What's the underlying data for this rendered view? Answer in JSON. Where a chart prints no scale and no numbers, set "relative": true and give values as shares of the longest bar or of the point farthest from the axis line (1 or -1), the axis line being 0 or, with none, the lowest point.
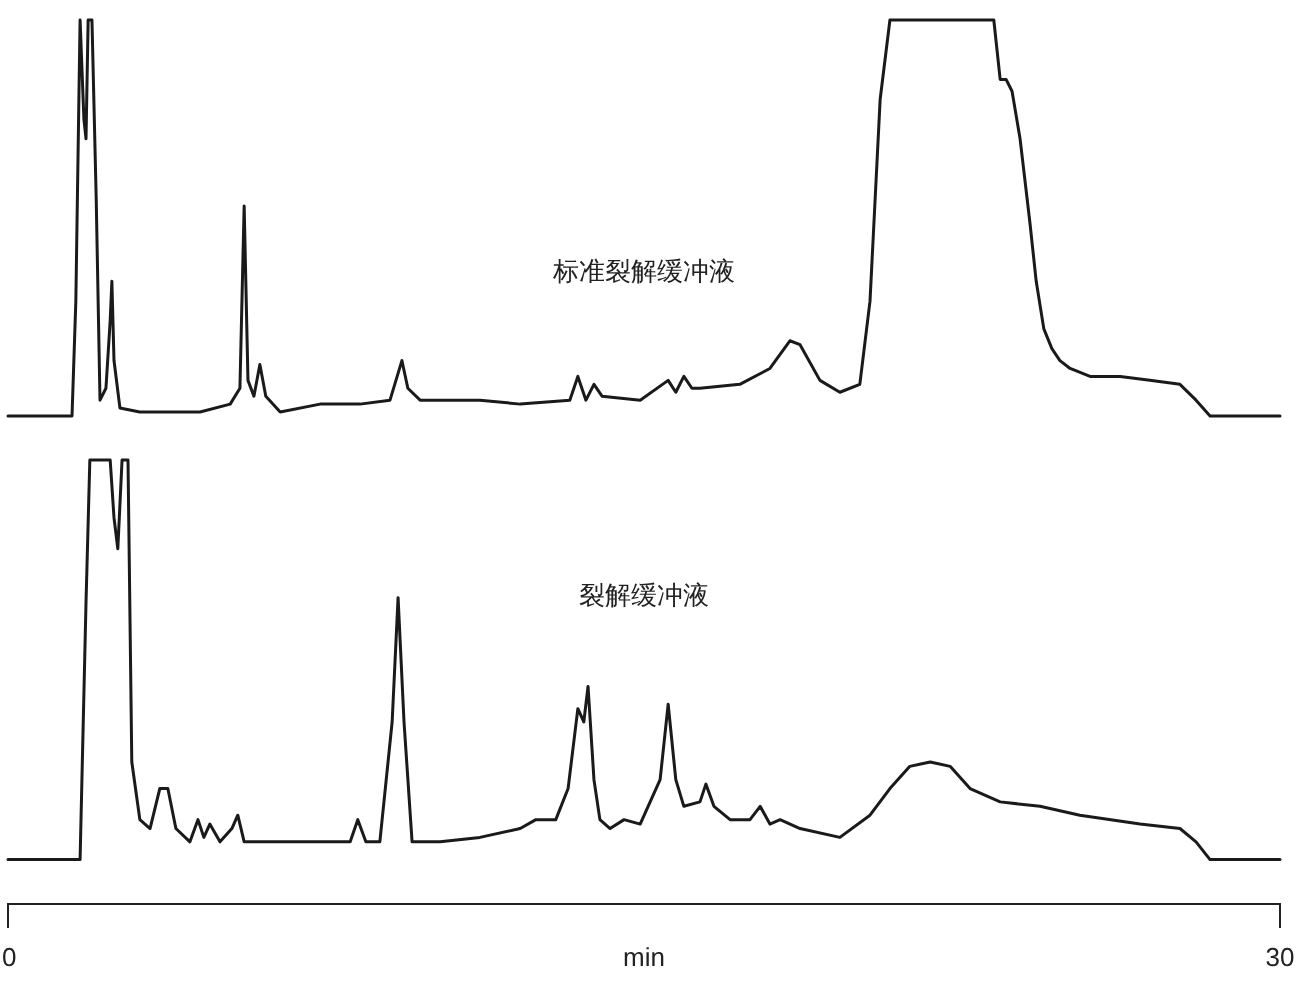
{
  "chart_data": [
    {
      "type": "line",
      "relative": true,
      "xlim": [
        0,
        30
      ],
      "tick_labels": false,
      "grid": false,
      "marker": "none",
      "line_style": "solid",
      "x": [
        0,
        1.51,
        1.6,
        1.7,
        1.79,
        1.84,
        1.89,
        1.98,
        2.08,
        2.17,
        2.31,
        2.41,
        2.45,
        2.5,
        2.64,
        3.11,
        4.53,
        5.24,
        5.47,
        5.57,
        5.66,
        5.8,
        5.94,
        6.08,
        6.42,
        7.36,
        8.3,
        9.01,
        9.15,
        9.29,
        9.43,
        9.72,
        11.13,
        12.08,
        13.25,
        13.44,
        13.63,
        13.82,
        14.01,
        14.91,
        15.57,
        15.75,
        15.94,
        16.13,
        16.32,
        17.26,
        17.97,
        18.44,
        18.68,
        19.15,
        19.62,
        20.09,
        20.33,
        20.57,
        20.8,
        23.25,
        23.4,
        23.54,
        23.68,
        23.87,
        24.1,
        24.25,
        24.43,
        24.62,
        24.81,
        25.05,
        25.52,
        26.23,
        26.93,
        27.64,
        28.02,
        28.35,
        28.58,
        30
      ],
      "series": [
        {
          "name": "标准裂解缓冲液",
          "color": "#1a1a1a",
          "values": [
            0,
            0,
            0.29,
            1,
            0.75,
            0.7,
            1,
            1,
            0.55,
            0.04,
            0.07,
            0.24,
            0.34,
            0.14,
            0.02,
            0.01,
            0.01,
            0.03,
            0.07,
            0.53,
            0.09,
            0.05,
            0.13,
            0.05,
            0.01,
            0.03,
            0.03,
            0.04,
            0.09,
            0.14,
            0.07,
            0.04,
            0.04,
            0.03,
            0.04,
            0.1,
            0.04,
            0.08,
            0.05,
            0.04,
            0.09,
            0.06,
            0.1,
            0.07,
            0.07,
            0.08,
            0.12,
            0.19,
            0.18,
            0.09,
            0.06,
            0.08,
            0.29,
            0.8,
            1,
            1,
            0.85,
            0.85,
            0.82,
            0.7,
            0.49,
            0.34,
            0.22,
            0.17,
            0.14,
            0.12,
            0.1,
            0.1,
            0.09,
            0.08,
            0.04,
            0,
            0,
            0
          ]
        }
      ]
    },
    {
      "type": "line",
      "relative": true,
      "xlim": [
        0,
        30
      ],
      "xticks": [
        0,
        30
      ],
      "xlabel": "min",
      "tick_labels": "x",
      "grid": false,
      "marker": "none",
      "line_style": "solid",
      "x": [
        0,
        1.7,
        1.84,
        1.93,
        2.41,
        2.5,
        2.59,
        2.69,
        2.83,
        2.92,
        3.11,
        3.35,
        3.58,
        3.77,
        3.96,
        4.29,
        4.48,
        4.62,
        4.76,
        5.0,
        5.28,
        5.42,
        5.57,
        6.42,
        7.59,
        8.07,
        8.25,
        8.44,
        8.77,
        9.06,
        9.2,
        9.34,
        9.53,
        10.19,
        11.13,
        12.08,
        12.45,
        12.92,
        13.21,
        13.44,
        13.58,
        13.68,
        13.82,
        13.96,
        14.2,
        14.53,
        14.91,
        15.38,
        15.57,
        15.75,
        15.94,
        16.32,
        16.46,
        16.65,
        17.03,
        17.5,
        17.74,
        17.97,
        18.21,
        18.68,
        19.62,
        20.33,
        20.8,
        21.27,
        21.75,
        22.22,
        22.69,
        23.4,
        24.34,
        25.28,
        26.7,
        27.64,
        28.02,
        28.35,
        30
      ],
      "series": [
        {
          "name": "裂解缓冲液",
          "color": "#1a1a1a",
          "values": [
            0.1,
            0.1,
            0.68,
            1,
            1,
            0.87,
            0.8,
            1,
            1,
            0.32,
            0.19,
            0.17,
            0.26,
            0.26,
            0.17,
            0.14,
            0.19,
            0.15,
            0.18,
            0.14,
            0.17,
            0.2,
            0.14,
            0.14,
            0.14,
            0.14,
            0.19,
            0.14,
            0.14,
            0.41,
            0.69,
            0.41,
            0.14,
            0.14,
            0.15,
            0.17,
            0.19,
            0.19,
            0.26,
            0.44,
            0.41,
            0.49,
            0.28,
            0.19,
            0.17,
            0.19,
            0.18,
            0.28,
            0.45,
            0.28,
            0.22,
            0.23,
            0.27,
            0.22,
            0.19,
            0.19,
            0.22,
            0.18,
            0.19,
            0.17,
            0.15,
            0.2,
            0.26,
            0.31,
            0.32,
            0.31,
            0.26,
            0.23,
            0.22,
            0.2,
            0.18,
            0.17,
            0.14,
            0.1,
            0.1
          ]
        }
      ]
    }
  ]
}
